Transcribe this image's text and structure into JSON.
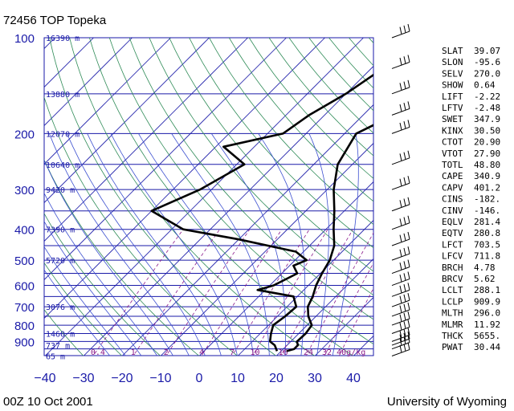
{
  "chart_data": {
    "type": "skew-t",
    "title": "72456 TOP Topeka",
    "footer_left": "00Z 10 Oct 2001",
    "footer_right": "University of Wyoming",
    "pressure_ticks": [
      100,
      200,
      300,
      400,
      500,
      600,
      700,
      800,
      900
    ],
    "temp_ticks": [
      -40,
      -30,
      -20,
      -10,
      0,
      10,
      20,
      30,
      40
    ],
    "height_labels": [
      {
        "p": 100,
        "label": "16390 m"
      },
      {
        "p": 150,
        "label": "13880 m"
      },
      {
        "p": 200,
        "label": "12070 m"
      },
      {
        "p": 250,
        "label": "10640 m"
      },
      {
        "p": 300,
        "label": "9420 m"
      },
      {
        "p": 400,
        "label": "7390 m"
      },
      {
        "p": 500,
        "label": "5720 m"
      },
      {
        "p": 700,
        "label": "3076 m"
      },
      {
        "p": 850,
        "label": "1460 m"
      },
      {
        "p": 925,
        "label": "737 m"
      },
      {
        "p": 1000,
        "label": "65 m"
      }
    ],
    "mixing_ratio_labels": [
      "0.4",
      "1",
      "2",
      "4",
      "7",
      "10",
      "16",
      "24",
      "32",
      "40g/kg"
    ],
    "temperature": [
      {
        "p": 965,
        "t": 21.4
      },
      {
        "p": 950,
        "t": 22.8
      },
      {
        "p": 925,
        "t": 22.8
      },
      {
        "p": 900,
        "t": 21.6
      },
      {
        "p": 850,
        "t": 21.8
      },
      {
        "p": 800,
        "t": 21.2
      },
      {
        "p": 750,
        "t": 18.0
      },
      {
        "p": 700,
        "t": 15.4
      },
      {
        "p": 650,
        "t": 14.0
      },
      {
        "p": 600,
        "t": 12.0
      },
      {
        "p": 550,
        "t": 10.4
      },
      {
        "p": 500,
        "t": 9.0
      },
      {
        "p": 450,
        "t": 6.4
      },
      {
        "p": 400,
        "t": 2.0
      },
      {
        "p": 350,
        "t": -2.6
      },
      {
        "p": 300,
        "t": -8.3
      },
      {
        "p": 250,
        "t": -13.8
      },
      {
        "p": 200,
        "t": -17.0
      },
      {
        "p": 175,
        "t": -12.0
      },
      {
        "p": 150,
        "t": -6.5
      },
      {
        "p": 125,
        "t": -1.5
      },
      {
        "p": 100,
        "t": 6.5
      }
    ],
    "dewpoint": [
      {
        "p": 965,
        "t": 18.9
      },
      {
        "p": 925,
        "t": 16.8
      },
      {
        "p": 900,
        "t": 14.6
      },
      {
        "p": 850,
        "t": 12.8
      },
      {
        "p": 800,
        "t": 11.2
      },
      {
        "p": 750,
        "t": 12.0
      },
      {
        "p": 700,
        "t": 12.4
      },
      {
        "p": 650,
        "t": 9.0
      },
      {
        "p": 620,
        "t": -2.0
      },
      {
        "p": 600,
        "t": 1.0
      },
      {
        "p": 550,
        "t": 4.0
      },
      {
        "p": 520,
        "t": 1.0
      },
      {
        "p": 500,
        "t": 3.0
      },
      {
        "p": 470,
        "t": -2.0
      },
      {
        "p": 430,
        "t": -20.0
      },
      {
        "p": 400,
        "t": -37.0
      },
      {
        "p": 350,
        "t": -50.0
      },
      {
        "p": 300,
        "t": -43.0
      },
      {
        "p": 250,
        "t": -38.0
      },
      {
        "p": 220,
        "t": -48.0
      },
      {
        "p": 200,
        "t": -36.0
      },
      {
        "p": 175,
        "t": -34.0
      },
      {
        "p": 150,
        "t": -30.0
      },
      {
        "p": 125,
        "t": -27.0
      },
      {
        "p": 100,
        "t": -23.0
      }
    ],
    "indices": [
      {
        "name": "SLAT",
        "value": "39.07"
      },
      {
        "name": "SLON",
        "value": "-95.6"
      },
      {
        "name": "SELV",
        "value": "270.0"
      },
      {
        "name": "SHOW",
        "value": "0.64"
      },
      {
        "name": "LIFT",
        "value": "-2.22"
      },
      {
        "name": "LFTV",
        "value": "-2.48"
      },
      {
        "name": "SWET",
        "value": "347.9"
      },
      {
        "name": "KINX",
        "value": "30.50"
      },
      {
        "name": "CTOT",
        "value": "20.90"
      },
      {
        "name": "VTOT",
        "value": "27.90"
      },
      {
        "name": "TOTL",
        "value": "48.80"
      },
      {
        "name": "CAPE",
        "value": "340.9"
      },
      {
        "name": "CAPV",
        "value": "401.2"
      },
      {
        "name": "CINS",
        "value": "-182."
      },
      {
        "name": "CINV",
        "value": "-146."
      },
      {
        "name": "EQLV",
        "value": "281.4"
      },
      {
        "name": "EQTV",
        "value": "280.8"
      },
      {
        "name": "LFCT",
        "value": "703.5"
      },
      {
        "name": "LFCV",
        "value": "711.8"
      },
      {
        "name": "BRCH",
        "value": "4.78"
      },
      {
        "name": "BRCV",
        "value": "5.62"
      },
      {
        "name": "LCLT",
        "value": "288.1"
      },
      {
        "name": "LCLP",
        "value": "909.9"
      },
      {
        "name": "MLTH",
        "value": "296.0"
      },
      {
        "name": "MLMR",
        "value": "11.92"
      },
      {
        "name": "THCK",
        "value": "5655."
      },
      {
        "name": "PWAT",
        "value": "30.44"
      }
    ],
    "wind_barb_levels": [
      100,
      125,
      150,
      175,
      200,
      250,
      300,
      350,
      400,
      450,
      500,
      550,
      600,
      650,
      700,
      750,
      800,
      850,
      900,
      925,
      950,
      1000
    ],
    "colors": {
      "grid": "#1a1aa8",
      "dry_adiabat": "#2e8b57",
      "moist_adiabat": "#3b4fd0",
      "mixing_ratio": "#8b1a8b",
      "profile": "#000000"
    }
  }
}
